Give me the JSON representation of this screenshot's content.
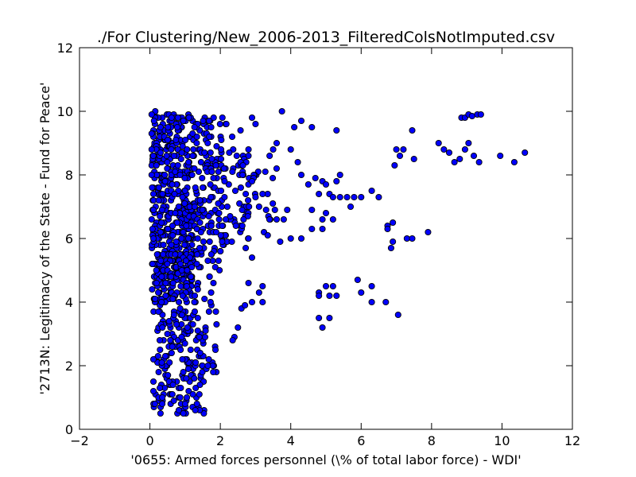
{
  "chart_data": {
    "type": "scatter",
    "title": "./For Clustering/New_2006-2013_FilteredColsNotImputed.csv",
    "xlabel": "'0655: Armed forces personnel  (\\% of total labor force) - WDI'",
    "ylabel": "'2713N: Legitimacy of the State - Fund for Peace'",
    "xlim": [
      -2,
      12
    ],
    "ylim": [
      0,
      12
    ],
    "x_ticks": [
      "−2",
      "0",
      "2",
      "4",
      "6",
      "8",
      "10",
      "12"
    ],
    "y_ticks": [
      "0",
      "2",
      "4",
      "6",
      "8",
      "10",
      "12"
    ],
    "grid": false,
    "legend": "none",
    "marker_color": "#0000ff",
    "marker_edge_color": "#000000",
    "cluster_seed": 20240611,
    "dense_clusters": [
      {
        "x": [
          0.05,
          0.6
        ],
        "y": [
          4.0,
          10.0
        ],
        "count": 230
      },
      {
        "x": [
          0.6,
          1.25
        ],
        "y": [
          4.5,
          10.0
        ],
        "count": 220
      },
      {
        "x": [
          1.25,
          2.1
        ],
        "y": [
          5.0,
          9.8
        ],
        "count": 140
      },
      {
        "x": [
          0.1,
          1.2
        ],
        "y": [
          2.5,
          5.5
        ],
        "count": 120
      },
      {
        "x": [
          0.1,
          1.6
        ],
        "y": [
          0.5,
          3.0
        ],
        "count": 110
      },
      {
        "x": [
          1.2,
          1.9
        ],
        "y": [
          1.5,
          4.8
        ],
        "count": 40
      },
      {
        "x": [
          2.0,
          2.8
        ],
        "y": [
          5.5,
          9.6
        ],
        "count": 60
      },
      {
        "x": [
          2.6,
          3.6
        ],
        "y": [
          6.0,
          8.5
        ],
        "count": 25
      }
    ],
    "points": [
      [
        3.75,
        10.0
      ],
      [
        4.3,
        9.7
      ],
      [
        4.6,
        9.5
      ],
      [
        4.1,
        9.5
      ],
      [
        5.3,
        9.4
      ],
      [
        7.45,
        9.4
      ],
      [
        3.6,
        9.0
      ],
      [
        3.5,
        8.8
      ],
      [
        3.4,
        8.6
      ],
      [
        4.0,
        8.8
      ],
      [
        4.2,
        8.4
      ],
      [
        4.7,
        7.9
      ],
      [
        4.9,
        7.8
      ],
      [
        4.3,
        8.0
      ],
      [
        4.5,
        7.7
      ],
      [
        5.0,
        7.7
      ],
      [
        5.4,
        8.0
      ],
      [
        5.3,
        7.8
      ],
      [
        4.8,
        7.4
      ],
      [
        5.1,
        7.4
      ],
      [
        5.2,
        7.3
      ],
      [
        5.4,
        7.3
      ],
      [
        5.6,
        7.3
      ],
      [
        5.8,
        7.3
      ],
      [
        6.0,
        7.3
      ],
      [
        6.3,
        7.5
      ],
      [
        6.5,
        7.3
      ],
      [
        5.7,
        7.0
      ],
      [
        5.0,
        6.8
      ],
      [
        4.9,
        6.6
      ],
      [
        4.6,
        6.9
      ],
      [
        3.9,
        6.9
      ],
      [
        3.6,
        6.6
      ],
      [
        3.8,
        6.6
      ],
      [
        4.0,
        6.0
      ],
      [
        4.3,
        6.0
      ],
      [
        4.6,
        6.3
      ],
      [
        4.9,
        6.3
      ],
      [
        5.2,
        6.6
      ],
      [
        3.7,
        5.9
      ],
      [
        6.75,
        6.4
      ],
      [
        6.75,
        6.3
      ],
      [
        6.9,
        6.5
      ],
      [
        6.9,
        5.9
      ],
      [
        6.85,
        5.7
      ],
      [
        7.3,
        6.0
      ],
      [
        7.45,
        6.0
      ],
      [
        7.9,
        6.2
      ],
      [
        6.7,
        4.0
      ],
      [
        7.05,
        3.6
      ],
      [
        6.3,
        4.5
      ],
      [
        6.3,
        4.0
      ],
      [
        5.9,
        4.7
      ],
      [
        6.0,
        4.3
      ],
      [
        5.0,
        4.5
      ],
      [
        5.2,
        4.5
      ],
      [
        5.3,
        4.2
      ],
      [
        5.1,
        4.2
      ],
      [
        4.8,
        4.3
      ],
      [
        4.8,
        4.2
      ],
      [
        4.8,
        3.5
      ],
      [
        4.9,
        3.2
      ],
      [
        5.1,
        3.5
      ],
      [
        6.95,
        8.3
      ],
      [
        7.0,
        8.8
      ],
      [
        7.2,
        8.8
      ],
      [
        7.1,
        8.6
      ],
      [
        7.5,
        8.5
      ],
      [
        8.2,
        9.0
      ],
      [
        8.35,
        8.8
      ],
      [
        8.5,
        8.7
      ],
      [
        8.65,
        8.4
      ],
      [
        8.8,
        8.5
      ],
      [
        8.95,
        8.8
      ],
      [
        9.05,
        9.0
      ],
      [
        9.2,
        8.6
      ],
      [
        9.35,
        8.4
      ],
      [
        9.95,
        8.6
      ],
      [
        10.35,
        8.4
      ],
      [
        10.65,
        8.7
      ],
      [
        8.85,
        9.8
      ],
      [
        8.95,
        9.8
      ],
      [
        9.05,
        9.9
      ],
      [
        9.15,
        9.85
      ],
      [
        9.3,
        9.9
      ],
      [
        9.4,
        9.9
      ],
      [
        2.9,
        9.8
      ],
      [
        3.0,
        9.6
      ],
      [
        2.8,
        8.8
      ],
      [
        2.9,
        7.8
      ],
      [
        3.2,
        7.4
      ],
      [
        3.0,
        7.3
      ],
      [
        3.1,
        7.0
      ],
      [
        3.3,
        6.9
      ],
      [
        2.8,
        6.0
      ],
      [
        2.9,
        5.4
      ],
      [
        2.8,
        4.6
      ],
      [
        2.9,
        4.0
      ],
      [
        3.2,
        4.0
      ],
      [
        3.1,
        4.3
      ],
      [
        3.2,
        4.5
      ],
      [
        2.6,
        3.8
      ],
      [
        2.5,
        3.2
      ],
      [
        2.4,
        2.9
      ],
      [
        2.35,
        2.8
      ],
      [
        2.7,
        3.9
      ],
      [
        0.05,
        9.9
      ],
      [
        0.1,
        9.2
      ],
      [
        0.05,
        9.3
      ],
      [
        0.05,
        8.8
      ],
      [
        0.05,
        8.0
      ],
      [
        0.1,
        7.4
      ],
      [
        0.05,
        6.6
      ],
      [
        0.1,
        6.0
      ],
      [
        0.1,
        2.2
      ],
      [
        0.1,
        1.5
      ],
      [
        0.1,
        1.2
      ],
      [
        0.3,
        0.5
      ],
      [
        0.95,
        0.5
      ],
      [
        0.35,
        0.8
      ],
      [
        1.0,
        0.8
      ],
      [
        1.05,
        1.0
      ]
    ]
  }
}
